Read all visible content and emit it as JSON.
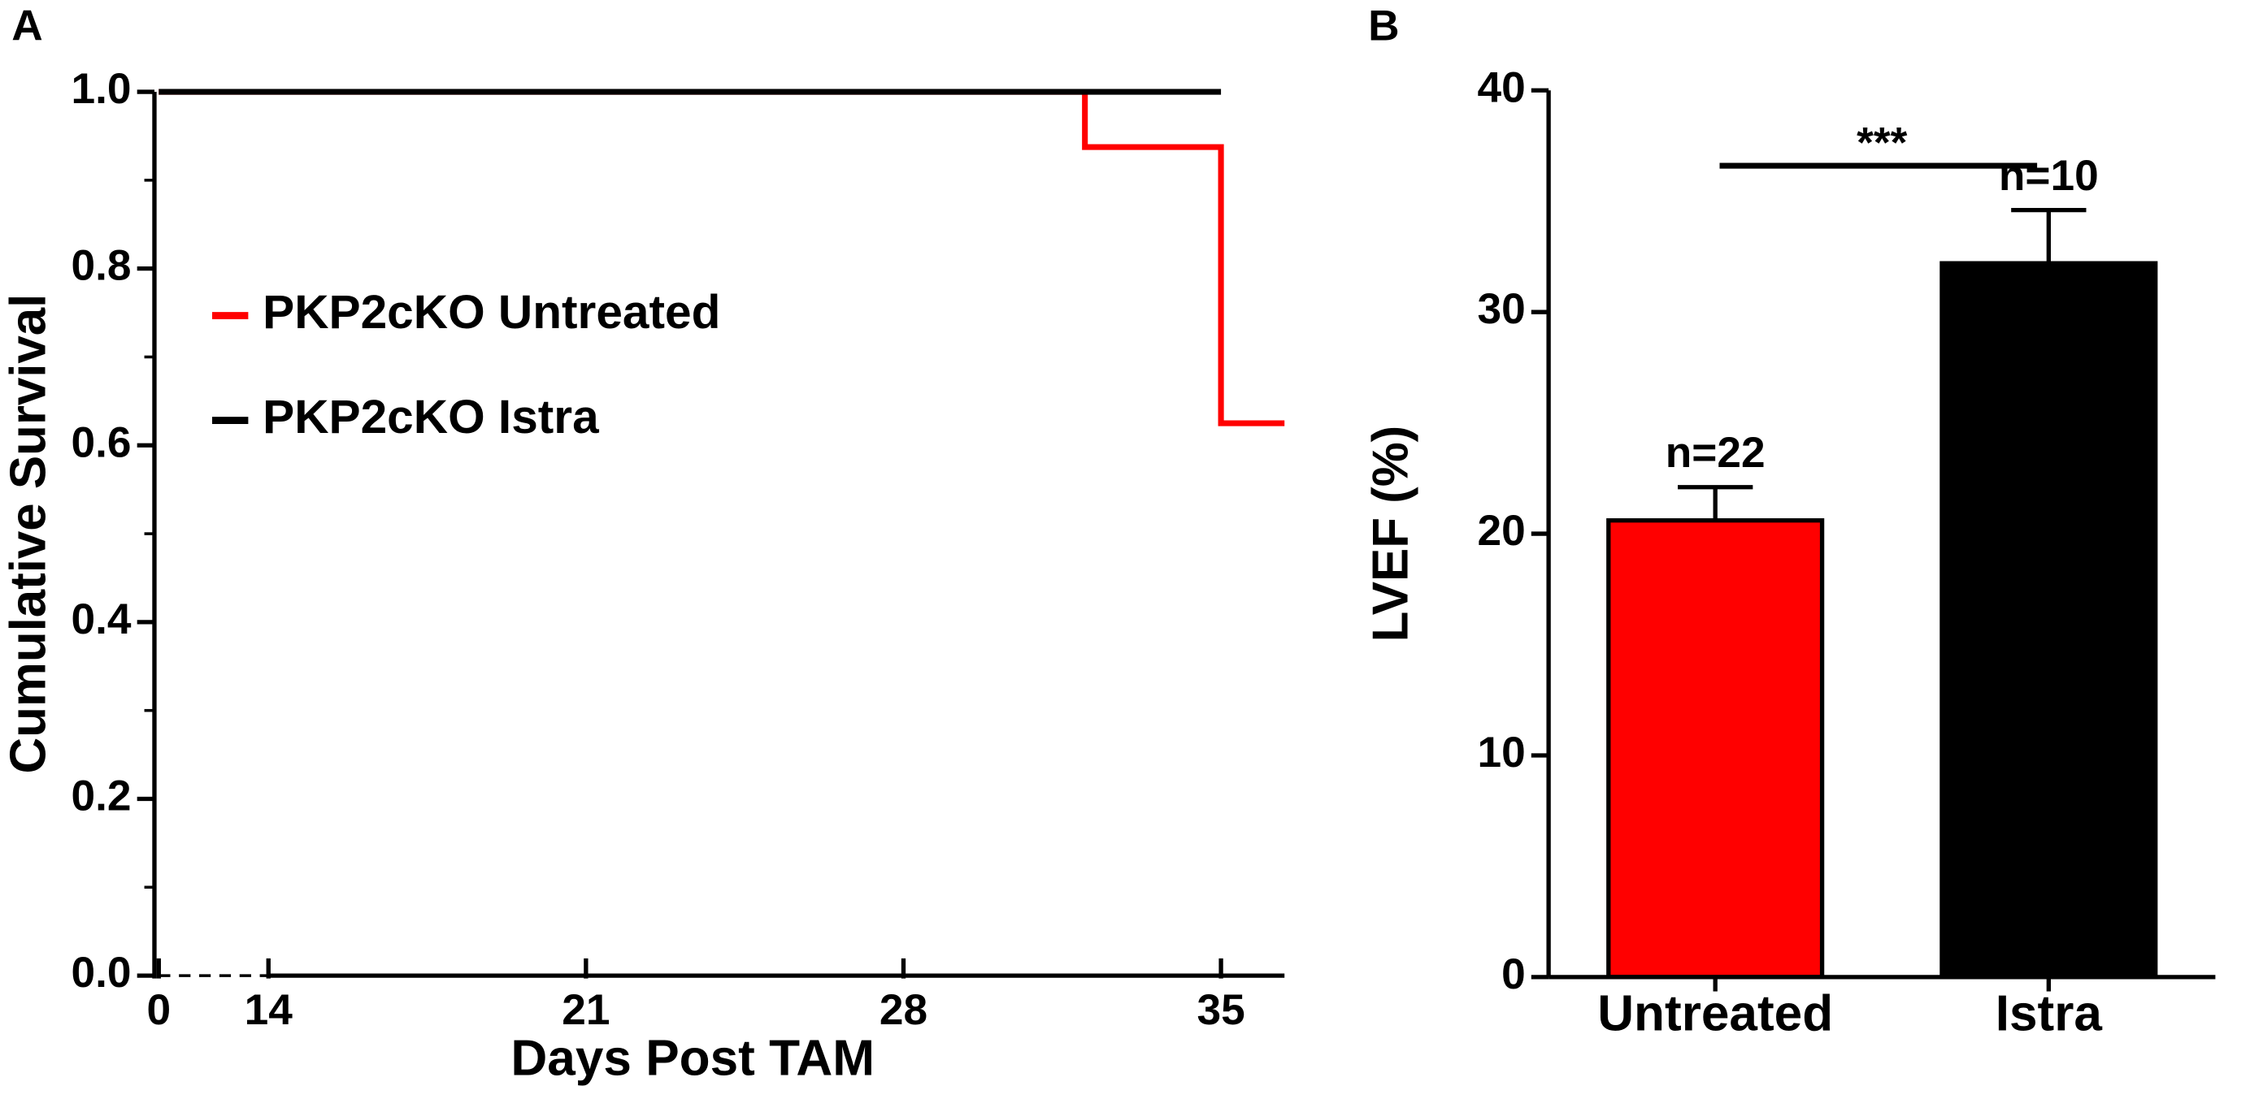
{
  "chart_data": [
    {
      "type": "line",
      "panel_label": "A",
      "ylabel": "Cumulative Survival",
      "xlabel": "Days Post TAM",
      "step": true,
      "series": [
        {
          "name": "PKP2cKO Untreated",
          "color": "#ff0000",
          "x": [
            0,
            32,
            35,
            36.4
          ],
          "values": [
            1,
            0.9375,
            0.625,
            0.625
          ]
        },
        {
          "name": "PKP2cKO Istra",
          "color": "#000000",
          "x": [
            0,
            35
          ],
          "values": [
            1,
            1
          ]
        }
      ],
      "xlim": [
        0,
        36.4
      ],
      "xticks": [
        0,
        14,
        21,
        28,
        35
      ],
      "axis_break": [
        0,
        14
      ],
      "ylim": [
        0,
        1
      ],
      "yticks": [
        {
          "value": 0,
          "label": "0.0"
        },
        0.2,
        0.4,
        0.6,
        0.8,
        {
          "value": 1,
          "label": "1.0"
        }
      ],
      "yminorticks": [
        0.1,
        0.3,
        0.5,
        0.7,
        0.9
      ],
      "legend": "left"
    },
    {
      "type": "bar",
      "panel_label": "B",
      "ylabel": "LVEF (%)",
      "categories": [
        "Untreated",
        "Istra"
      ],
      "values": [
        20.6,
        32.2
      ],
      "errors": [
        1.5,
        2.4
      ],
      "colors": [
        "#ff0000",
        "#000000"
      ],
      "annotations": [
        "n=22",
        "n=10"
      ],
      "significance": {
        "label": "***",
        "from": 0,
        "to": 1,
        "y": 36.6
      },
      "ylim": [
        0,
        40
      ],
      "yticks": [
        0,
        10,
        20,
        30,
        40
      ]
    }
  ]
}
